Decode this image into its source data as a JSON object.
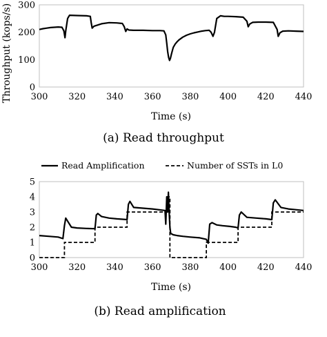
{
  "chart_data": [
    {
      "type": "line",
      "caption": "(a) Read throughput",
      "xlabel": "Time (s)",
      "ylabel": "Throughput (kops/s)",
      "xlim": [
        300,
        440
      ],
      "ylim": [
        0,
        300
      ],
      "xticks": [
        "300",
        "320",
        "340",
        "360",
        "380",
        "400",
        "420",
        "440"
      ],
      "yticks": [
        "0",
        "100",
        "200",
        "300"
      ],
      "grid": false,
      "series": [
        {
          "x": [
            300,
            302,
            304,
            306,
            308,
            310,
            312,
            313,
            313.6,
            314,
            315,
            316,
            320,
            325,
            327,
            327.5,
            328,
            329,
            333,
            337,
            341,
            344,
            345,
            345.8,
            346.5,
            347.5,
            350,
            355,
            360,
            362,
            364,
            366,
            367,
            367.5,
            368,
            368.5,
            369,
            369.5,
            370,
            370.6,
            371,
            372,
            373,
            374,
            376,
            378,
            380,
            382,
            384,
            386,
            388,
            390,
            391,
            392,
            392.8,
            394,
            396,
            398,
            400,
            404,
            408,
            410,
            410.7,
            411.5,
            413,
            416,
            420,
            424,
            426,
            426.6,
            427.5,
            429,
            432,
            436,
            440
          ],
          "y": [
            210,
            213,
            215,
            217,
            218,
            219,
            218,
            205,
            180,
            205,
            250,
            262,
            261,
            260,
            258,
            235,
            215,
            222,
            231,
            235,
            234,
            232,
            220,
            203,
            212,
            208,
            207,
            207,
            206,
            206,
            206,
            205,
            190,
            160,
            130,
            108,
            97,
            105,
            120,
            135,
            145,
            157,
            165,
            172,
            182,
            189,
            194,
            198,
            201,
            204,
            206,
            207,
            200,
            185,
            200,
            250,
            260,
            258,
            258,
            257,
            255,
            240,
            220,
            230,
            236,
            237,
            237,
            236,
            210,
            185,
            198,
            204,
            205,
            204,
            203
          ]
        }
      ]
    },
    {
      "type": "line",
      "caption": "(b) Read amplification",
      "xlabel": "Time (s)",
      "ylabel": "",
      "xlim": [
        300,
        440
      ],
      "ylim": [
        0,
        5
      ],
      "xticks": [
        "300",
        "320",
        "340",
        "360",
        "380",
        "400",
        "420",
        "440"
      ],
      "yticks": [
        "0",
        "1",
        "2",
        "3",
        "4",
        "5"
      ],
      "legend": "top",
      "grid": false,
      "series": [
        {
          "name": "Read Amplification",
          "style": "solid",
          "x": [
            300,
            305,
            310,
            312.5,
            313.3,
            314,
            315,
            317,
            320,
            325,
            329.5,
            330.2,
            331,
            333,
            337,
            341,
            346.5,
            347.2,
            348,
            350,
            355,
            360,
            366.6,
            367,
            367.5,
            368,
            368.4,
            368.8,
            369.2,
            369.6,
            370.2,
            371,
            373,
            376,
            380,
            385,
            388.5,
            389.5,
            390.3,
            391.5,
            394,
            397,
            401,
            404,
            405.3,
            406,
            407,
            410,
            415,
            420,
            423.2,
            424,
            425,
            428,
            432,
            436,
            440
          ],
          "y": [
            1.45,
            1.4,
            1.35,
            1.25,
            2.1,
            2.6,
            2.4,
            2.0,
            1.95,
            1.92,
            1.9,
            2.8,
            2.9,
            2.7,
            2.6,
            2.55,
            2.5,
            3.5,
            3.7,
            3.3,
            3.25,
            3.2,
            3.1,
            2.2,
            4.0,
            3.0,
            4.3,
            3.0,
            2.0,
            1.6,
            1.55,
            1.5,
            1.45,
            1.4,
            1.35,
            1.3,
            1.2,
            0.95,
            2.2,
            2.3,
            2.15,
            2.1,
            2.05,
            2.0,
            1.95,
            2.8,
            3.0,
            2.65,
            2.6,
            2.55,
            2.5,
            3.6,
            3.8,
            3.3,
            3.2,
            3.15,
            3.1
          ]
        },
        {
          "name": "Number of SSTs in L0",
          "style": "dashed",
          "x": [
            300,
            313.3,
            313.3,
            329.5,
            329.5,
            346.5,
            346.5,
            368,
            368,
            369.2,
            369.2,
            388.5,
            388.5,
            405.3,
            405.3,
            423.2,
            423.2,
            440
          ],
          "y": [
            0,
            0,
            1,
            1,
            2,
            2,
            3,
            3,
            4,
            4,
            0,
            0,
            1,
            1,
            2,
            2,
            3,
            3
          ]
        }
      ]
    }
  ]
}
